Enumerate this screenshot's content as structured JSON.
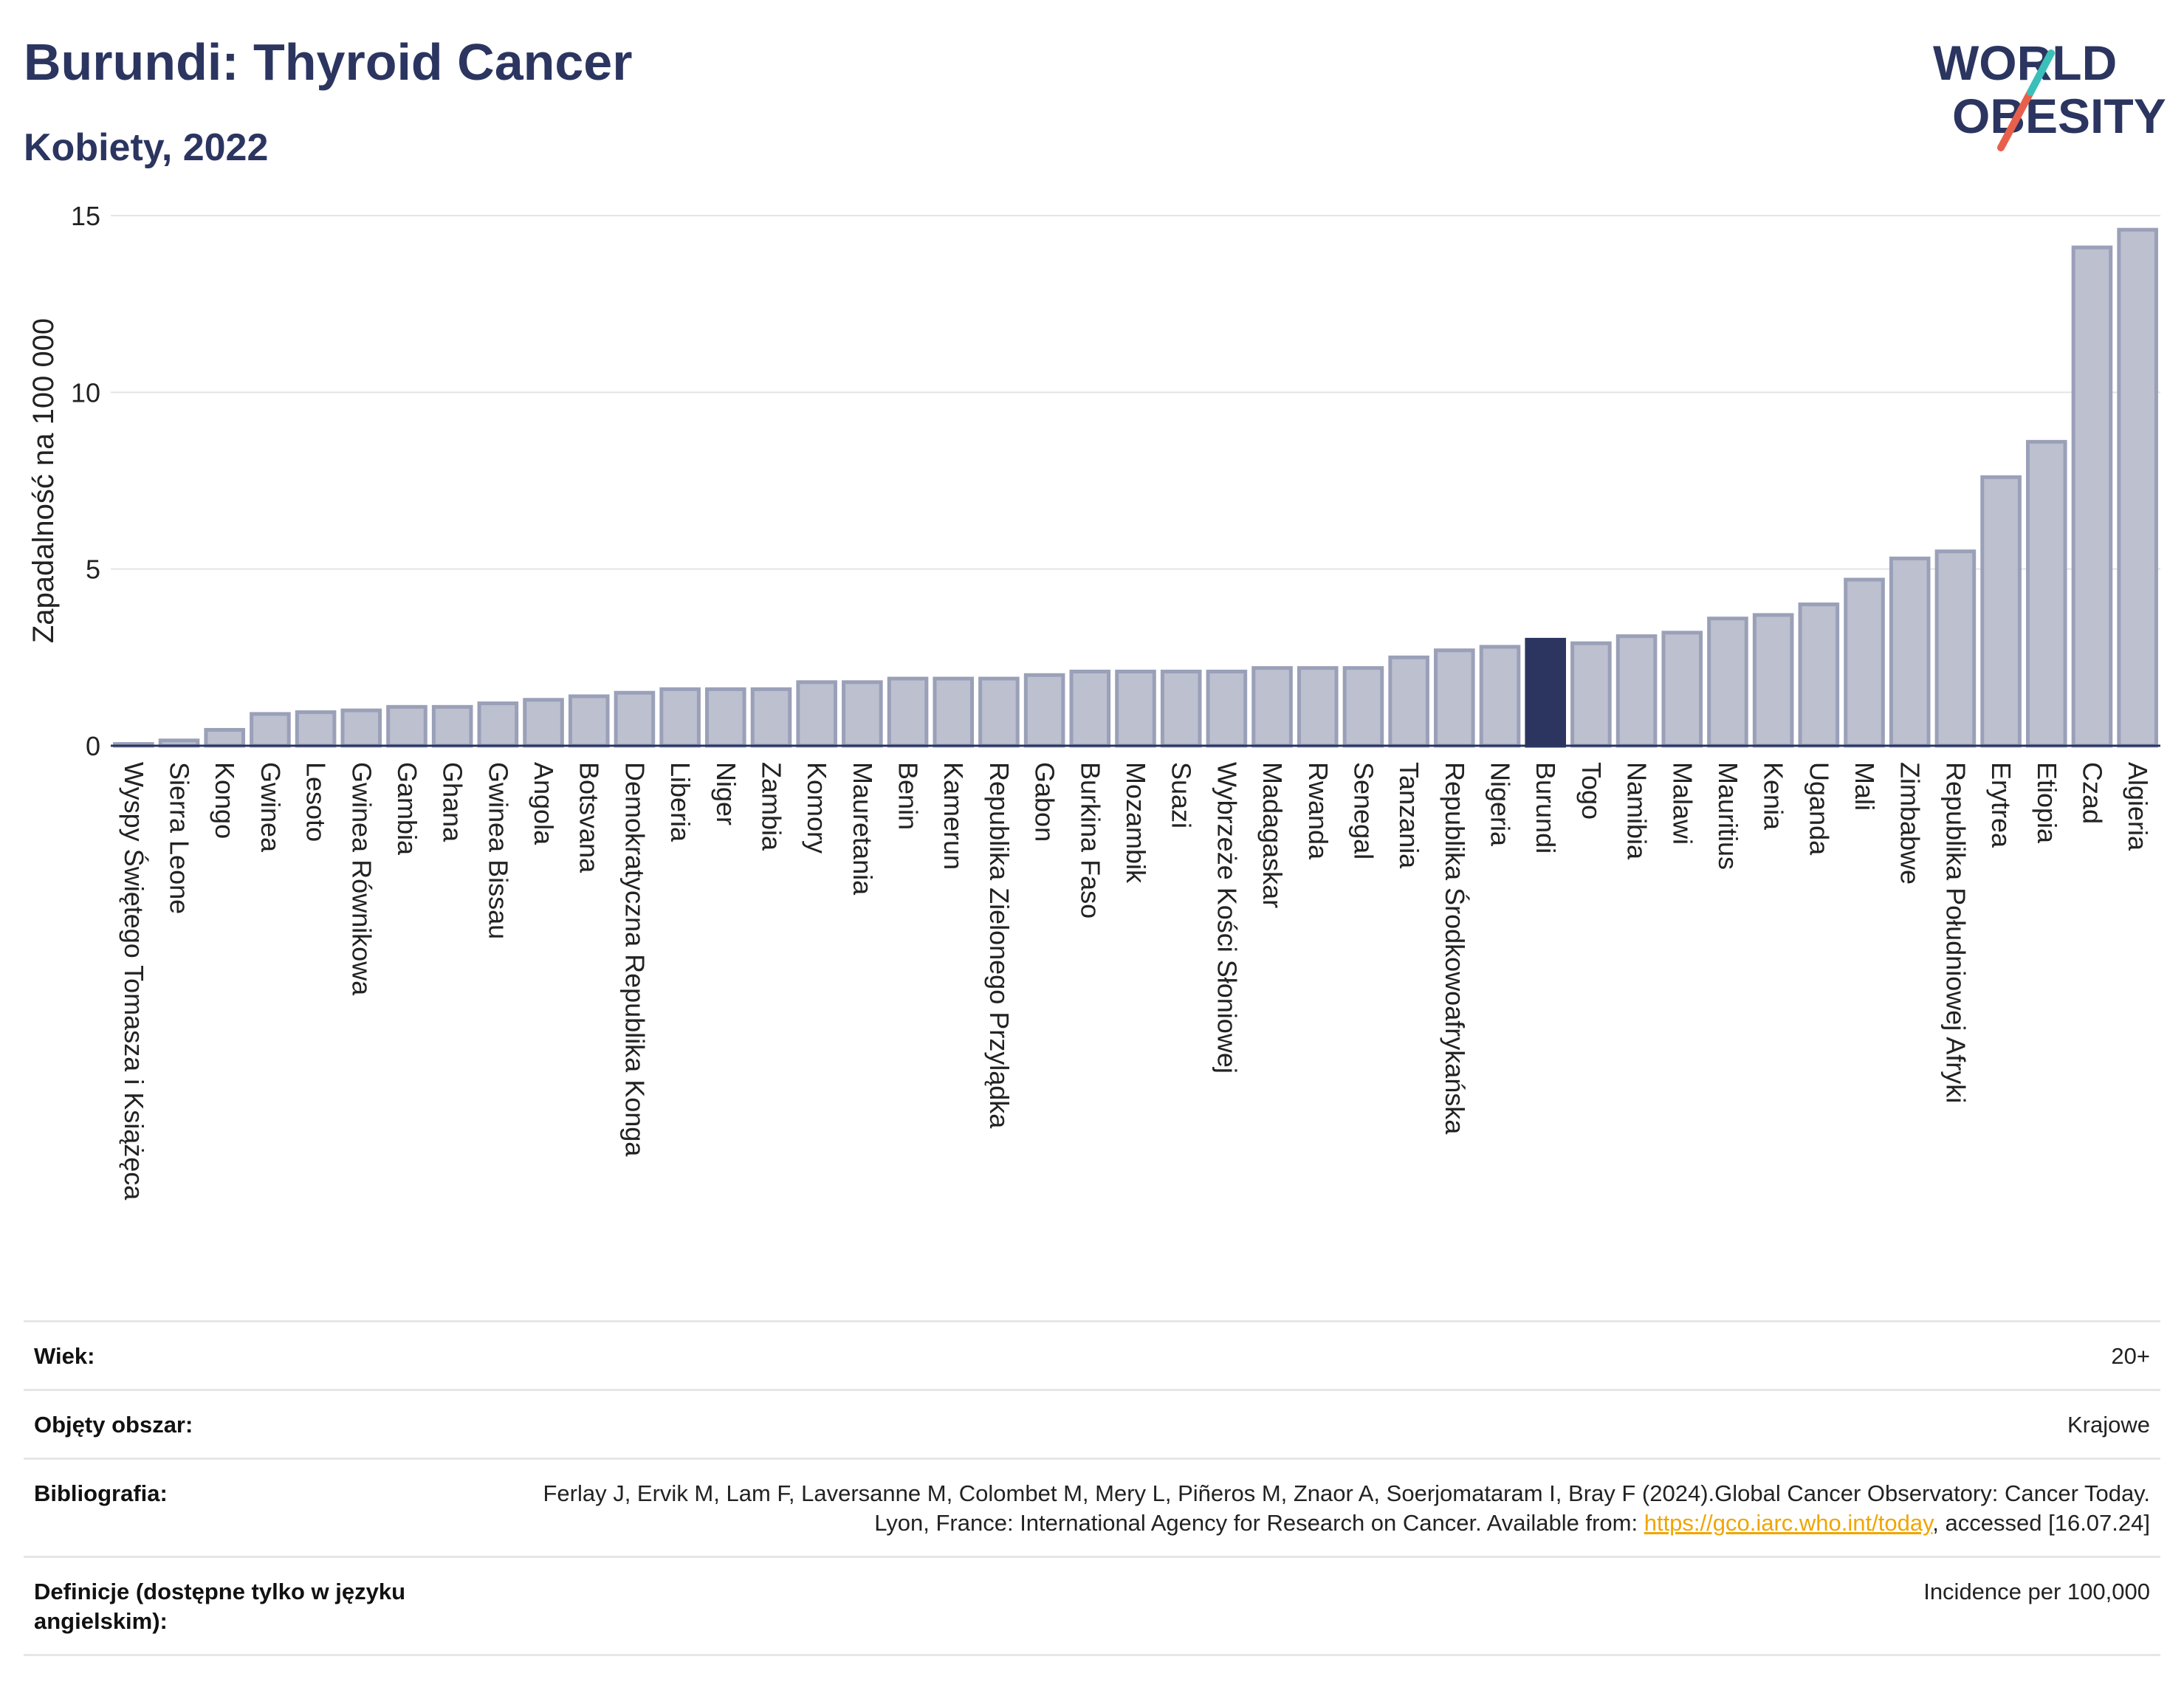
{
  "header": {
    "title": "Burundi: Thyroid Cancer",
    "subtitle": "Kobiety, 2022"
  },
  "logo": {
    "line1": "WORLD",
    "line2": "OBESITY",
    "colors": {
      "text": "#2b3560",
      "slash_teal": "#3bbfb9",
      "slash_red": "#e8604c"
    }
  },
  "chart_data": {
    "type": "bar",
    "ylabel": "Zapadalność na 100 000",
    "xlabel": "",
    "ylim": [
      0,
      15
    ],
    "yticks": [
      0,
      5,
      10,
      15
    ],
    "grid": true,
    "highlight": "Burundi",
    "colors": {
      "bar": "#bcc0cf",
      "bar_edge": "#9aa0b8",
      "highlight": "#2b3560",
      "grid": "#e4e4e4",
      "axis": "#2b3560"
    },
    "categories": [
      "Wyspy Świętego Tomasza i Książęca",
      "Sierra Leone",
      "Kongo",
      "Gwinea",
      "Lesoto",
      "Gwinea Równikowa",
      "Gambia",
      "Ghana",
      "Gwinea Bissau",
      "Angola",
      "Botsvana",
      "Demokratyczna Republika Konga",
      "Liberia",
      "Niger",
      "Zambia",
      "Komory",
      "Mauretania",
      "Benin",
      "Kamerun",
      "Republika Zielonego Przylądka",
      "Gabon",
      "Burkina Faso",
      "Mozambik",
      "Suazi",
      "Wybrzeże Kości Słoniowej",
      "Madagaskar",
      "Rwanda",
      "Senegal",
      "Tanzania",
      "Republika Środkowoafrykańska",
      "Nigeria",
      "Burundi",
      "Togo",
      "Namibia",
      "Malawi",
      "Mauritius",
      "Kenia",
      "Uganda",
      "Mali",
      "Zimbabwe",
      "Republika Południowej Afryki",
      "Erytrea",
      "Etiopia",
      "Czad",
      "Algieria"
    ],
    "values": [
      0.05,
      0.15,
      0.45,
      0.9,
      0.95,
      1.0,
      1.1,
      1.1,
      1.2,
      1.3,
      1.4,
      1.5,
      1.6,
      1.6,
      1.6,
      1.8,
      1.8,
      1.9,
      1.9,
      1.9,
      2.0,
      2.1,
      2.1,
      2.1,
      2.1,
      2.2,
      2.2,
      2.2,
      2.5,
      2.7,
      2.8,
      3.0,
      2.9,
      3.1,
      3.2,
      3.6,
      3.7,
      4.0,
      4.7,
      5.3,
      5.5,
      7.6,
      8.6,
      14.1,
      14.6
    ]
  },
  "meta": {
    "rows": [
      {
        "key": "Wiek:",
        "value": "20+"
      },
      {
        "key": "Objęty obszar:",
        "value": "Krajowe"
      },
      {
        "key": "Bibliografia:",
        "value": "Ferlay J, Ervik M, Lam F, Laversanne M, Colombet M, Mery L, Piñeros M, Znaor A, Soerjomataram I, Bray F (2024).Global Cancer Observatory: Cancer Today. Lyon, France: International Agency for Research on Cancer. Available from: ",
        "link": "https://gco.iarc.who.int/today",
        "suffix": ", accessed [16.07.24]"
      },
      {
        "key": "Definicje (dostępne tylko w języku angielskim):",
        "value": "Incidence per 100,000"
      }
    ]
  }
}
